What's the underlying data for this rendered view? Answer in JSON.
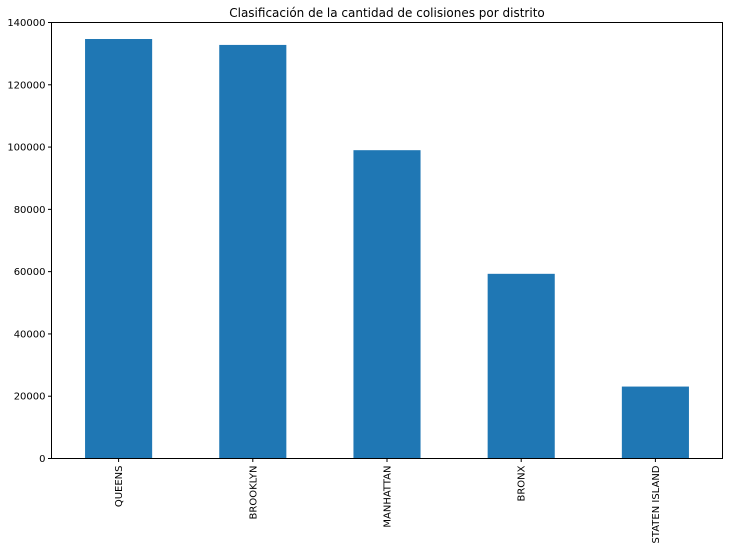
{
  "chart_data": {
    "type": "bar",
    "title": "Clasificación de la cantidad de colisiones por distrito",
    "xlabel": "",
    "ylabel": "",
    "categories": [
      "QUEENS",
      "BROOKLYN",
      "MANHATTAN",
      "BRONX",
      "STATEN ISLAND"
    ],
    "values": [
      134700,
      132800,
      99000,
      59300,
      23100
    ],
    "ylim": [
      0,
      140000
    ],
    "yticks": [
      "0",
      "20000",
      "40000",
      "60000",
      "80000",
      "100000",
      "120000",
      "140000"
    ],
    "grid": false,
    "legend": "none",
    "bar_color": "#1f77b4"
  }
}
